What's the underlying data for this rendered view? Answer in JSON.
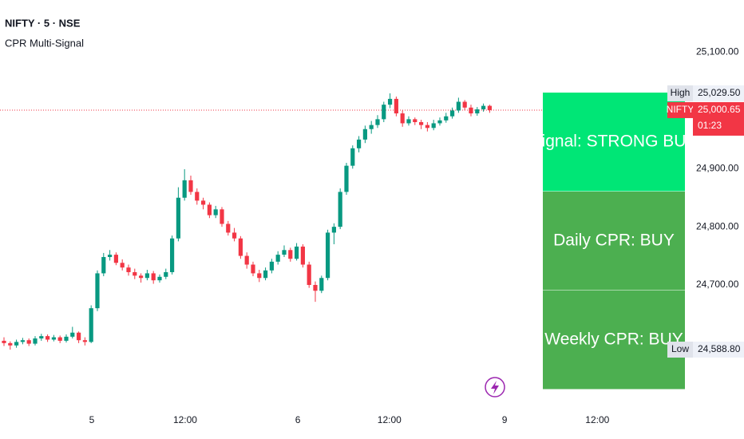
{
  "chart_data": {
    "type": "candlestick",
    "title": "NIFTY · 5 · NSE",
    "subtitle": "CPR Multi-Signal",
    "up_color": "#089981",
    "down_color": "#f23645",
    "candles": [
      [
        24604,
        24610,
        24595,
        24600
      ],
      [
        24600,
        24603,
        24588.8,
        24596
      ],
      [
        24596,
        24606,
        24592,
        24602
      ],
      [
        24602,
        24609,
        24598,
        24605
      ],
      [
        24605,
        24608,
        24595,
        24599
      ],
      [
        24599,
        24612,
        24596,
        24608
      ],
      [
        24608,
        24616,
        24604,
        24612
      ],
      [
        24612,
        24615,
        24602,
        24606
      ],
      [
        24606,
        24614,
        24603,
        24610
      ],
      [
        24610,
        24613,
        24600,
        24604
      ],
      [
        24604,
        24615,
        24601,
        24611
      ],
      [
        24611,
        24628,
        24608,
        24618
      ],
      [
        24618,
        24620,
        24600,
        24605
      ],
      [
        24605,
        24610,
        24596,
        24602
      ],
      [
        24602,
        24665,
        24600,
        24660
      ],
      [
        24660,
        24725,
        24655,
        24720
      ],
      [
        24720,
        24755,
        24715,
        24748
      ],
      [
        24748,
        24760,
        24742,
        24752
      ],
      [
        24752,
        24756,
        24734,
        24738
      ],
      [
        24738,
        24744,
        24725,
        24730
      ],
      [
        24730,
        24735,
        24716,
        24722
      ],
      [
        24722,
        24728,
        24710,
        24716
      ],
      [
        24716,
        24720,
        24704,
        24712
      ],
      [
        24712,
        24726,
        24708,
        24720
      ],
      [
        24720,
        24724,
        24702,
        24708
      ],
      [
        24708,
        24718,
        24704,
        24714
      ],
      [
        24714,
        24728,
        24710,
        24722
      ],
      [
        24722,
        24785,
        24718,
        24780
      ],
      [
        24780,
        24868,
        24775,
        24850
      ],
      [
        24850,
        24899,
        24845,
        24880
      ],
      [
        24880,
        24888,
        24855,
        24860
      ],
      [
        24860,
        24866,
        24838,
        24845
      ],
      [
        24845,
        24850,
        24830,
        24838
      ],
      [
        24838,
        24842,
        24815,
        24820
      ],
      [
        24820,
        24836,
        24815,
        24830
      ],
      [
        24830,
        24834,
        24800,
        24805
      ],
      [
        24805,
        24810,
        24785,
        24790
      ],
      [
        24790,
        24798,
        24775,
        24780
      ],
      [
        24780,
        24784,
        24745,
        24750
      ],
      [
        24750,
        24756,
        24728,
        24735
      ],
      [
        24735,
        24740,
        24715,
        24720
      ],
      [
        24720,
        24726,
        24705,
        24712
      ],
      [
        24712,
        24730,
        24708,
        24725
      ],
      [
        24725,
        24745,
        24720,
        24740
      ],
      [
        24740,
        24758,
        24735,
        24752
      ],
      [
        24752,
        24768,
        24748,
        24760
      ],
      [
        24760,
        24764,
        24740,
        24745
      ],
      [
        24745,
        24772,
        24742,
        24766
      ],
      [
        24766,
        24770,
        24730,
        24735
      ],
      [
        24735,
        24740,
        24695,
        24700
      ],
      [
        24700,
        24706,
        24671,
        24690
      ],
      [
        24690,
        24716,
        24686,
        24712
      ],
      [
        24712,
        24795,
        24708,
        24790
      ],
      [
        24790,
        24806,
        24770,
        24800
      ],
      [
        24800,
        24866,
        24796,
        24860
      ],
      [
        24860,
        24910,
        24855,
        24905
      ],
      [
        24905,
        24940,
        24900,
        24935
      ],
      [
        24935,
        24956,
        24928,
        24950
      ],
      [
        24950,
        24974,
        24944,
        24968
      ],
      [
        24968,
        24982,
        24960,
        24975
      ],
      [
        24975,
        24992,
        24970,
        24985
      ],
      [
        24985,
        25015,
        24980,
        25010
      ],
      [
        25010,
        25029.5,
        25004,
        25020
      ],
      [
        25020,
        25024,
        24990,
        24995
      ],
      [
        24995,
        25000,
        24972,
        24978
      ],
      [
        24978,
        24990,
        24974,
        24985
      ],
      [
        24985,
        24988,
        24975,
        24980
      ],
      [
        24980,
        24984,
        24968,
        24975
      ],
      [
        24975,
        24980,
        24964,
        24970
      ],
      [
        24970,
        24984,
        24966,
        24978
      ],
      [
        24978,
        24988,
        24974,
        24983
      ],
      [
        24983,
        24996,
        24979,
        24990
      ],
      [
        24990,
        25005,
        24986,
        25000
      ],
      [
        25000,
        25022,
        24996,
        25015
      ],
      [
        25015,
        25018,
        25000,
        25005
      ],
      [
        25005,
        25010,
        24990,
        24995
      ],
      [
        24995,
        25006,
        24991,
        25002
      ],
      [
        25002,
        25012,
        24998,
        25008
      ],
      [
        25008,
        25010,
        24996,
        25000.65
      ]
    ],
    "xlim": [
      -0.64,
      118.85
    ],
    "xticks": [
      {
        "value": 14.1,
        "label": "5"
      },
      {
        "value": 29.1,
        "label": "12:00"
      },
      {
        "value": 47.2,
        "label": "6"
      },
      {
        "value": 61.9,
        "label": "12:00"
      },
      {
        "value": 80.4,
        "label": "9"
      },
      {
        "value": 95.3,
        "label": "12:00"
      }
    ],
    "ylim": [
      24490,
      25190
    ],
    "yticks": [
      {
        "value": 24700,
        "label": "24,700.00"
      },
      {
        "value": 24800,
        "label": "24,800.00"
      },
      {
        "value": 24900,
        "label": "24,900.00"
      },
      {
        "value": 25100,
        "label": "25,100.00"
      }
    ],
    "high": {
      "tag": "High",
      "value": 25029.5,
      "label": "25,029.50"
    },
    "low": {
      "tag": "Low",
      "value": 24588.8,
      "label": "24,588.80"
    },
    "last": {
      "tag": "NIFTY",
      "value": 25000.65,
      "label": "25,000.65",
      "countdown": "01:23",
      "color": "#f23645"
    },
    "signals": [
      {
        "text": "Signal: STRONG BUY",
        "color": "#00e676"
      },
      {
        "text": "Daily CPR: BUY",
        "color": "#4caf50"
      },
      {
        "text": "Weekly CPR: BUY",
        "color": "#4caf50"
      }
    ]
  }
}
